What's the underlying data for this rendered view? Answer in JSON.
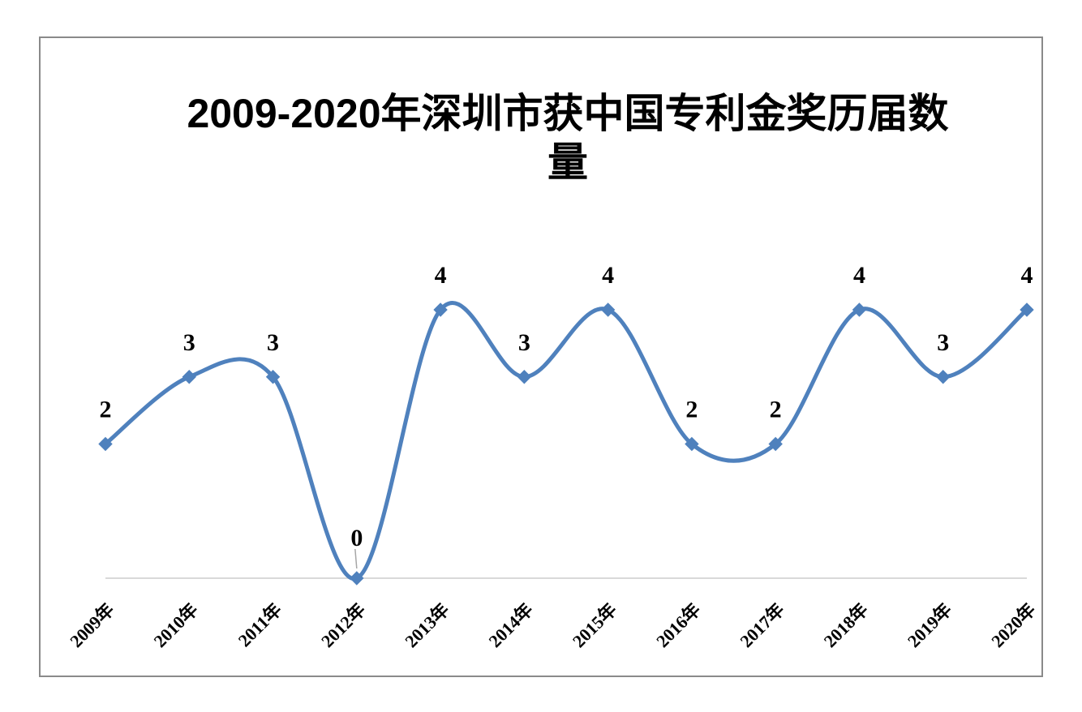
{
  "chart_data": {
    "type": "line",
    "title": "2009-2020年深圳市获中国专利金奖历届数量",
    "xlabel": "",
    "ylabel": "",
    "categories": [
      "2009年",
      "2010年",
      "2011年",
      "2012年",
      "2013年",
      "2014年",
      "2015年",
      "2016年",
      "2017年",
      "2018年",
      "2019年",
      "2020年"
    ],
    "series": [
      {
        "values": [
          2,
          3,
          3,
          0,
          4,
          3,
          4,
          2,
          2,
          4,
          3,
          4
        ]
      }
    ],
    "ylim": [
      0,
      4
    ],
    "smooth": true,
    "markers": "diamond",
    "data_labels": true,
    "grid": false,
    "legend": "none",
    "colors": {
      "line": "#4f81bd",
      "marker": "#4f81bd",
      "axis": "#d9d9d9"
    }
  }
}
